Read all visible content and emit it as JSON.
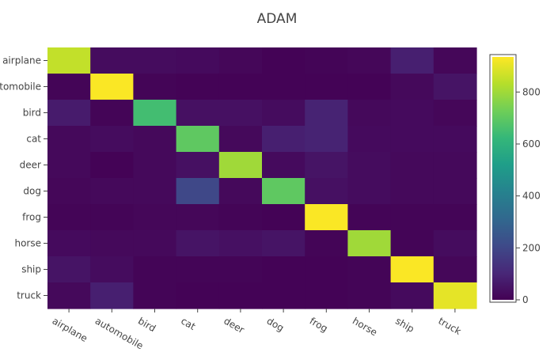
{
  "chart_data": {
    "type": "heatmap",
    "title": "ADAM",
    "x_categories": [
      "airplane",
      "automobile",
      "bird",
      "cat",
      "deer",
      "dog",
      "frog",
      "horse",
      "ship",
      "truck"
    ],
    "y_categories": [
      "airplane",
      "automobile",
      "bird",
      "cat",
      "deer",
      "dog",
      "frog",
      "horse",
      "ship",
      "truck"
    ],
    "z": [
      [
        850,
        30,
        30,
        25,
        15,
        5,
        10,
        15,
        80,
        15
      ],
      [
        10,
        930,
        10,
        5,
        5,
        5,
        5,
        5,
        20,
        50
      ],
      [
        70,
        10,
        650,
        40,
        40,
        30,
        90,
        20,
        25,
        15
      ],
      [
        20,
        30,
        20,
        700,
        20,
        80,
        90,
        25,
        25,
        25
      ],
      [
        20,
        5,
        20,
        40,
        800,
        25,
        50,
        30,
        20,
        20
      ],
      [
        15,
        20,
        20,
        200,
        20,
        700,
        40,
        30,
        20,
        20
      ],
      [
        10,
        10,
        15,
        15,
        10,
        5,
        930,
        10,
        10,
        10
      ],
      [
        25,
        20,
        20,
        50,
        40,
        50,
        10,
        800,
        10,
        30
      ],
      [
        50,
        30,
        10,
        10,
        10,
        5,
        5,
        10,
        930,
        15
      ],
      [
        20,
        80,
        10,
        5,
        5,
        5,
        5,
        10,
        25,
        900
      ]
    ],
    "colorscale": "Viridis",
    "zlim": [
      0,
      935
    ],
    "colorbar": {
      "tickvals": [
        0,
        200,
        400,
        600,
        800
      ],
      "ticklabels": [
        "0",
        "200",
        "400",
        "600",
        "800"
      ]
    }
  }
}
